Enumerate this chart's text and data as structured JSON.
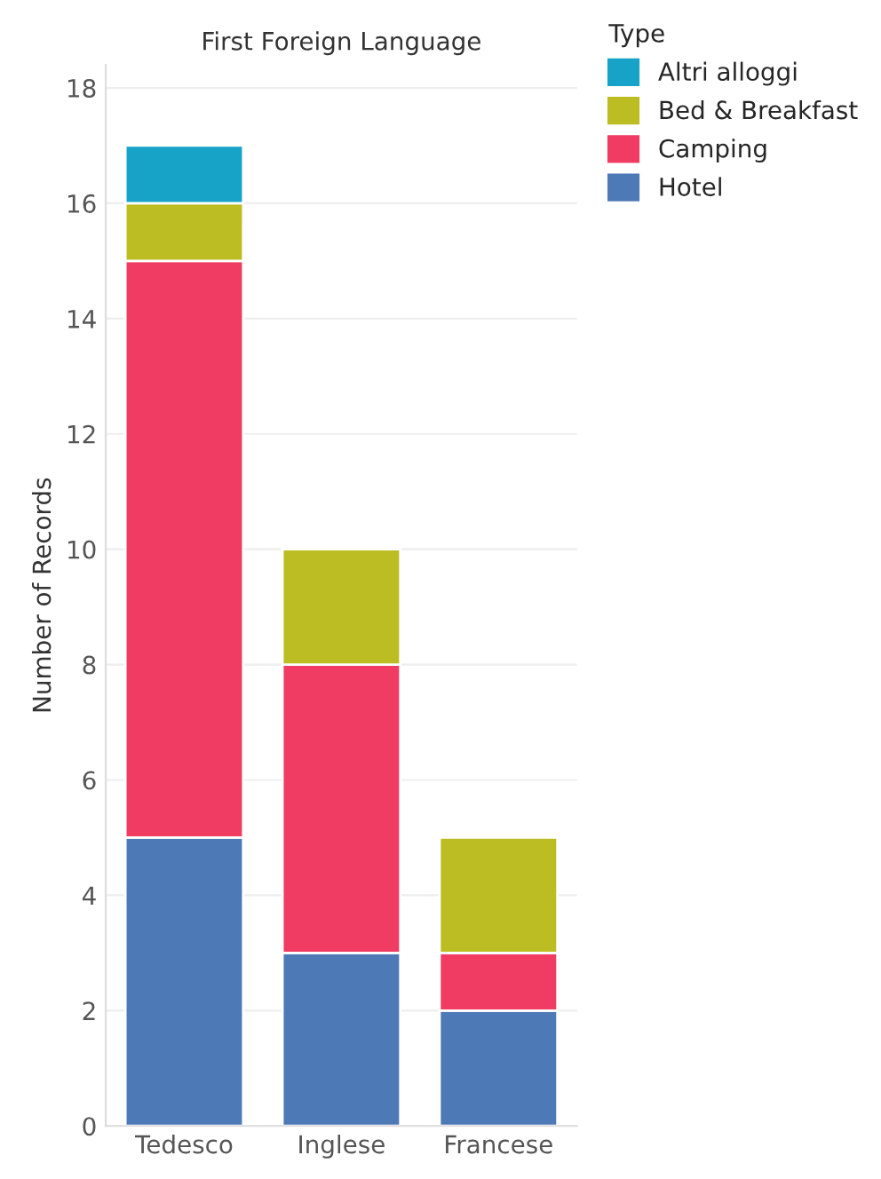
{
  "chart_data": {
    "type": "bar",
    "title": "First Foreign Language",
    "ylabel": "Number of Records",
    "legend_title": "Type",
    "categories": [
      "Tedesco",
      "Inglese",
      "Francese"
    ],
    "stacked": true,
    "series": [
      {
        "name": "Hotel",
        "color": "#4e79b7",
        "values": [
          5,
          3,
          2
        ]
      },
      {
        "name": "Camping",
        "color": "#f03c62",
        "values": [
          10,
          5,
          1
        ]
      },
      {
        "name": "Bed & Breakfast",
        "color": "#bcbd22",
        "values": [
          1,
          2,
          2
        ]
      },
      {
        "name": "Altri alloggi",
        "color": "#17a3c7",
        "values": [
          1,
          null,
          null
        ]
      }
    ],
    "ylim": [
      0,
      18.4
    ],
    "yticks": [
      0,
      2,
      4,
      6,
      8,
      10,
      12,
      14,
      16,
      18
    ],
    "grid": "y",
    "legend": "top right"
  }
}
